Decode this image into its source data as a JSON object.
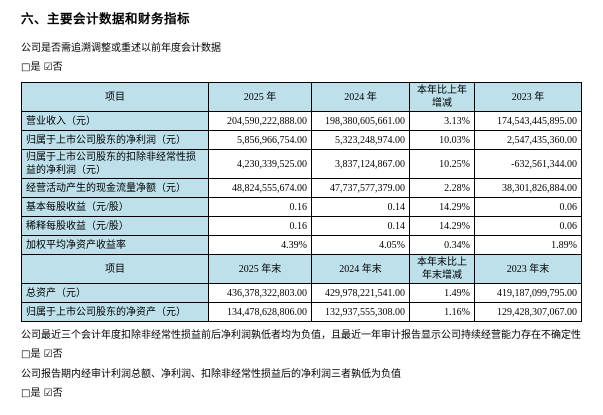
{
  "doc": {
    "section_title": "六、主要会计数据和财务指标",
    "q_restate": "公司是否需追溯调整或重述以前年度会计数据",
    "answer_line": "□是 ☑否",
    "q_negative_profit": "公司最近三个会计年度扣除非经常性损益前后净利润孰低者均为负值，且最近一年审计报告显示公司持续经营能力存在不确定性",
    "q_audited_negative": "公司报告期内经审计利润总额、净利润、扣除非经常性损益后的净利润三者孰低为负值"
  },
  "table_annual": {
    "headers": [
      "项目",
      "2025 年",
      "2024 年",
      "本年比上年增减",
      "2023 年"
    ],
    "rows": [
      {
        "label": "营业收入（元）",
        "y2025": "204,590,222,888.00",
        "y2024": "198,380,605,661.00",
        "change": "3.13%",
        "y2023": "174,543,445,895.00"
      },
      {
        "label": "归属于上市公司股东的净利润（元）",
        "y2025": "5,856,966,754.00",
        "y2024": "5,323,248,974.00",
        "change": "10.03%",
        "y2023": "2,547,435,360.00"
      },
      {
        "label": "归属于上市公司股东的扣除非经常性损益的净利润（元）",
        "y2025": "4,230,339,525.00",
        "y2024": "3,837,124,867.00",
        "change": "10.25%",
        "y2023": "-632,561,344.00"
      },
      {
        "label": "经营活动产生的现金流量净额（元）",
        "y2025": "48,824,555,674.00",
        "y2024": "47,737,577,379.00",
        "change": "2.28%",
        "y2023": "38,301,826,884.00"
      },
      {
        "label": "基本每股收益（元/股）",
        "y2025": "0.16",
        "y2024": "0.14",
        "change": "14.29%",
        "y2023": "0.06"
      },
      {
        "label": "稀释每股收益（元/股）",
        "y2025": "0.16",
        "y2024": "0.14",
        "change": "14.29%",
        "y2023": "0.06"
      },
      {
        "label": "加权平均净资产收益率",
        "y2025": "4.39%",
        "y2024": "4.05%",
        "change": "0.34%",
        "y2023": "1.89%"
      }
    ]
  },
  "table_yearend": {
    "headers": [
      "项目",
      "2025 年末",
      "2024 年末",
      "本年末比上年末增减",
      "2023 年末"
    ],
    "rows": [
      {
        "label": "总资产（元）",
        "y2025": "436,378,322,803.00",
        "y2024": "429,978,221,541.00",
        "change": "1.49%",
        "y2023": "419,187,099,795.00"
      },
      {
        "label": "归属于上市公司股东的净资产（元）",
        "y2025": "134,478,628,806.00",
        "y2024": "132,937,555,308.00",
        "change": "1.16%",
        "y2023": "129,428,307,067.00"
      }
    ]
  }
}
